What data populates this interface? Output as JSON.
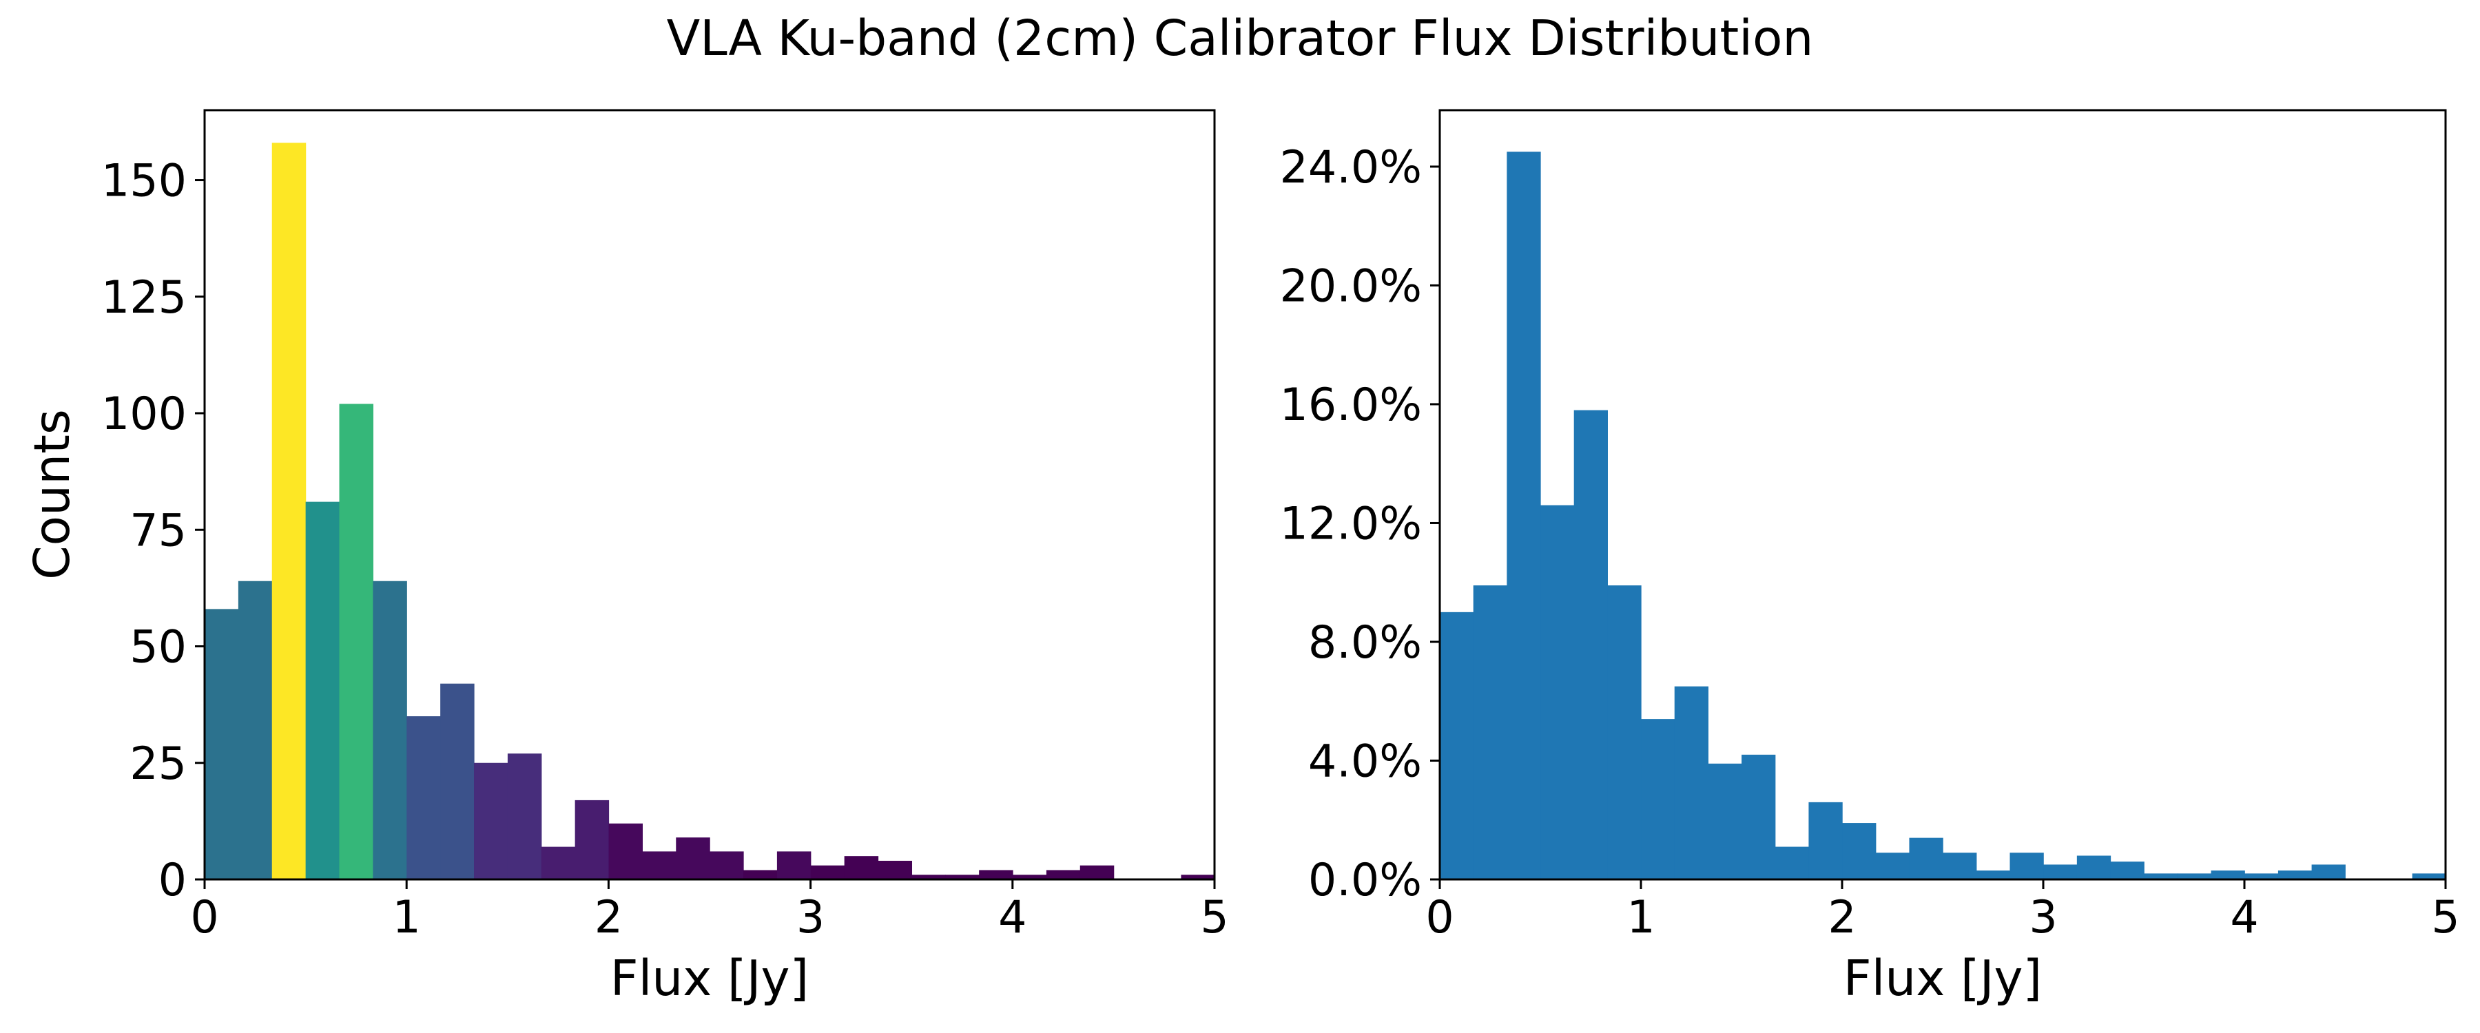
{
  "title": "VLA Ku-band (2cm) Calibrator Flux Distribution",
  "chart_data": [
    {
      "type": "bar",
      "subtype": "histogram",
      "bin_width": 0.1667,
      "bin_edges_start": 0,
      "xlabel": "Flux [Jy]",
      "ylabel": "Counts",
      "xlim": [
        0,
        5
      ],
      "ylim": [
        0,
        165
      ],
      "xticks": [
        0,
        1,
        2,
        3,
        4,
        5
      ],
      "yticks": [
        0,
        25,
        50,
        75,
        100,
        125,
        150
      ],
      "grid": false,
      "colormap": "viridis",
      "values": [
        58,
        64,
        158,
        81,
        102,
        64,
        35,
        42,
        25,
        27,
        7,
        17,
        12,
        6,
        9,
        6,
        2,
        6,
        3,
        5,
        4,
        1,
        1,
        2,
        1,
        2,
        3,
        0,
        0,
        1
      ],
      "colors": [
        "#2c728e",
        "#2c728e",
        "#fde725",
        "#21918c",
        "#35b779",
        "#2c728e",
        "#3b528b",
        "#3b528b",
        "#472d7b",
        "#472d7b",
        "#481d6f",
        "#481d6f",
        "#46085c",
        "#46085c",
        "#46085c",
        "#46085c",
        "#440154",
        "#46085c",
        "#440154",
        "#440154",
        "#440154",
        "#440154",
        "#440154",
        "#440154",
        "#440154",
        "#440154",
        "#440154",
        "#440154",
        "#440154",
        "#440154"
      ]
    },
    {
      "type": "bar",
      "subtype": "histogram",
      "bin_width": 0.1667,
      "bin_edges_start": 0,
      "xlabel": "Flux [Jy]",
      "ylabel": "",
      "xlim": [
        0,
        5
      ],
      "ylim": [
        0,
        25.9
      ],
      "xticks": [
        0,
        1,
        2,
        3,
        4,
        5
      ],
      "yticks": [
        0,
        4,
        8,
        12,
        16,
        20,
        24
      ],
      "ytick_format": "percent_1dp",
      "grid": false,
      "color": "#1f77b4",
      "values": [
        9.0,
        9.9,
        24.5,
        12.6,
        15.8,
        9.9,
        5.4,
        6.5,
        3.9,
        4.2,
        1.1,
        2.6,
        1.9,
        0.9,
        1.4,
        0.9,
        0.3,
        0.9,
        0.5,
        0.8,
        0.6,
        0.2,
        0.2,
        0.3,
        0.2,
        0.3,
        0.5,
        0,
        0,
        0.2
      ]
    }
  ]
}
